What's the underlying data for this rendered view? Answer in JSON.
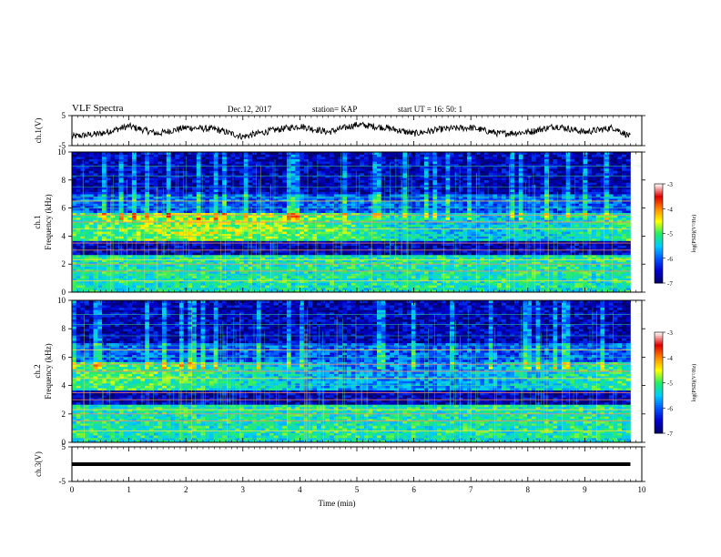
{
  "header": {
    "title": "VLF Spectra",
    "date": "Dec.12, 2017",
    "station": "station= KAP",
    "start": "start  UT =   16: 50: 1"
  },
  "colors": {
    "colormap": [
      "#000066",
      "#0000cc",
      "#0055ff",
      "#00ccff",
      "#22ee66",
      "#ffff00",
      "#ff8800",
      "#dd0000",
      "#ffffff"
    ]
  },
  "chart_data": [
    {
      "type": "line",
      "panel": "ch.1 waveform",
      "ylabel": "ch.1(V)",
      "ylim": [
        -5,
        5
      ],
      "yticks": [
        5,
        -5
      ],
      "x": [
        0,
        0.5,
        1,
        1.5,
        2,
        2.5,
        3,
        3.5,
        4,
        4.5,
        5,
        5.5,
        6,
        6.5,
        7,
        7.5,
        8,
        8.5,
        9,
        9.5,
        9.8
      ],
      "y": [
        -2.0,
        -1.0,
        1.5,
        -1.0,
        1.0,
        0.5,
        -2.0,
        0.0,
        1.5,
        -0.5,
        2.0,
        1.0,
        -1.0,
        0.5,
        1.0,
        -1.0,
        -0.5,
        1.5,
        -0.5,
        1.0,
        -2.0
      ]
    },
    {
      "type": "heatmap",
      "panel": "ch.1 spectrogram",
      "ylabel_top": "ch.1",
      "ylabel": "Frequency (kHz)",
      "ylim": [
        0,
        10
      ],
      "yticks": [
        0,
        2,
        4,
        6,
        8,
        10
      ],
      "colorbar": {
        "label": "log(PSD)(V²/Hz)",
        "range": [
          -7,
          -3
        ],
        "ticks": [
          -3,
          -4,
          -5,
          -6,
          -7
        ]
      },
      "frequency_bands_kHz": [
        0.8,
        1.5,
        2.0,
        2.3,
        3.0,
        3.5,
        4.5,
        5.0,
        5.5,
        6.5
      ],
      "dominant_log_psd_by_band": {
        "0-2.5 kHz": -5.0,
        "2.5-3.5 kHz": -6.5,
        "3.5-5.5 kHz": -5.0,
        "5.5-7 kHz": -6.0,
        "7-10 kHz": -6.5
      }
    },
    {
      "type": "heatmap",
      "panel": "ch.2 spectrogram",
      "ylabel_top": "ch.2",
      "ylabel": "Frequency (kHz)",
      "ylim": [
        0,
        10
      ],
      "yticks": [
        0,
        2,
        4,
        6,
        8,
        10
      ],
      "colorbar": {
        "label": "log(PSD)(V²/Hz)",
        "range": [
          -7,
          -3
        ],
        "ticks": [
          -3,
          -4,
          -5,
          -6,
          -7
        ]
      },
      "frequency_bands_kHz": [
        0.8,
        1.5,
        2.0,
        2.3,
        3.0,
        3.5,
        4.5,
        5.0,
        5.5,
        6.5
      ],
      "dominant_log_psd_by_band": {
        "0-2.5 kHz": -5.0,
        "2.5-3.5 kHz": -6.5,
        "3.5-5.5 kHz": -5.2,
        "5.5-7 kHz": -6.0,
        "7-10 kHz": -6.5
      }
    },
    {
      "type": "line",
      "panel": "ch.3 waveform",
      "ylabel": "ch.3(V)",
      "ylim": [
        -5,
        5
      ],
      "yticks": [
        5,
        -5
      ],
      "x": [
        0,
        9.8
      ],
      "y": [
        0,
        0
      ]
    }
  ],
  "xaxis": {
    "label": "Time (min)",
    "ticks": [
      0,
      1,
      2,
      3,
      4,
      5,
      6,
      7,
      8,
      9,
      10
    ],
    "xlim": [
      0,
      10
    ],
    "data_end": 9.8
  }
}
